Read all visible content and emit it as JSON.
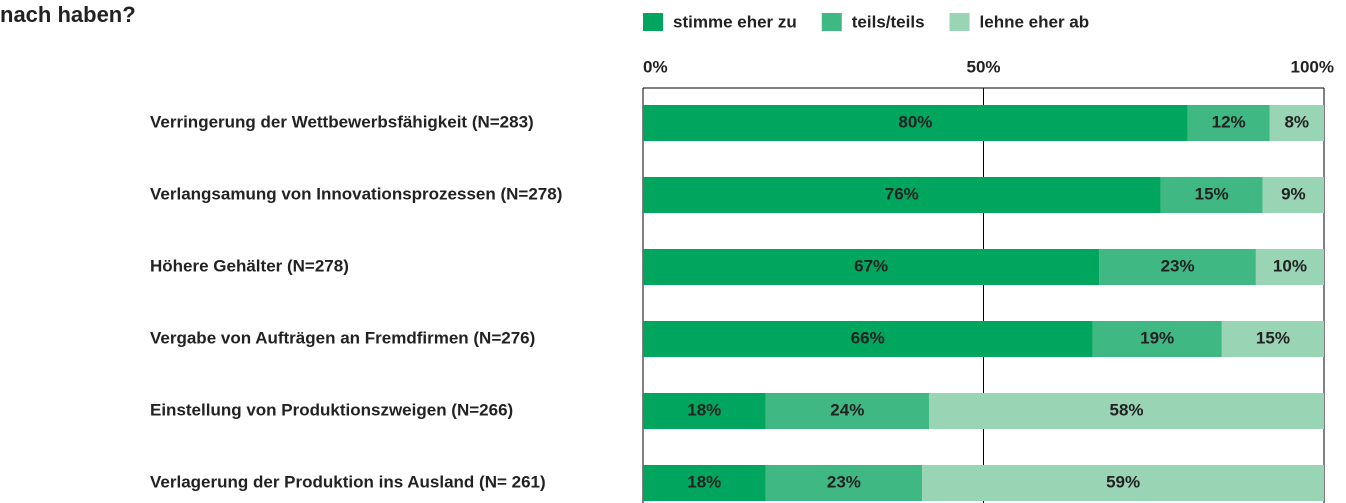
{
  "chart_data": {
    "type": "stacked-bar-horizontal",
    "title": "nach haben?",
    "categories": [
      "Verringerung der Wettbewerbsfähigkeit (N=283)",
      "Verlangsamung von Innovationsprozessen (N=278)",
      "Höhere Gehälter (N=278)",
      "Vergabe von Aufträgen an Fremdfirmen (N=276)",
      "Einstellung von Produktionszweigen (N=266)",
      "Verlagerung der Produktion ins Ausland (N= 261)"
    ],
    "series": [
      {
        "name": "stimme eher zu",
        "color": "#00a65d",
        "values": [
          80,
          76,
          67,
          66,
          18,
          18
        ],
        "value_labels": [
          "80%",
          "76%",
          "67%",
          "66%",
          "18%",
          "18%"
        ]
      },
      {
        "name": "teils/teils",
        "color": "#40b883",
        "values": [
          12,
          15,
          23,
          19,
          24,
          23
        ],
        "value_labels": [
          "12%",
          "15%",
          "23%",
          "19%",
          "24%",
          "23%"
        ]
      },
      {
        "name": "lehne eher ab",
        "color": "#99d4b4",
        "values": [
          8,
          9,
          10,
          15,
          58,
          59
        ],
        "value_labels": [
          "8%",
          "9%",
          "10%",
          "15%",
          "58%",
          "59%"
        ]
      }
    ],
    "xlim": [
      0,
      100
    ],
    "xticks": [
      {
        "value": 0,
        "label": "0%"
      },
      {
        "value": 50,
        "label": "50%"
      },
      {
        "value": 100,
        "label": "100%"
      }
    ],
    "legend": "top"
  }
}
